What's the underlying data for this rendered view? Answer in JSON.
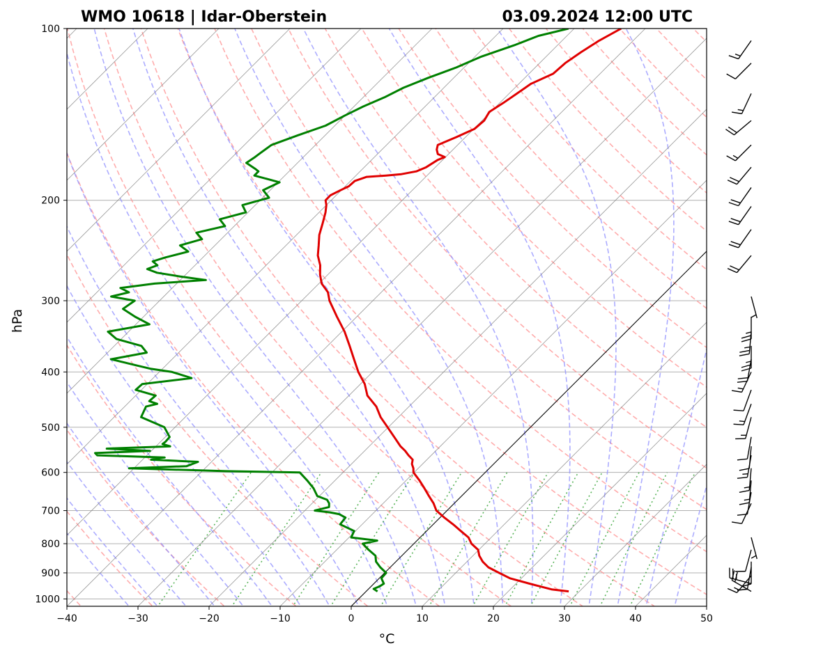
{
  "chart_data": {
    "type": "line",
    "chart_kind": "Skew-T log-P diagram",
    "title_left": "WMO 10618 | Idar-Oberstein",
    "title_right": "03.09.2024 12:00 UTC",
    "xlabel": "°C",
    "ylabel": "hPa",
    "xlim": [
      -40,
      50
    ],
    "ylim": [
      1030,
      100
    ],
    "y_scale": "log",
    "skew": "isotherms skewed 45°",
    "grid": true,
    "x_ticks": [
      -40,
      -30,
      -20,
      -10,
      0,
      10,
      20,
      30,
      40,
      50
    ],
    "x_tick_labels": [
      "−40",
      "−30",
      "−20",
      "−10",
      "0",
      "10",
      "20",
      "30",
      "40",
      "50"
    ],
    "y_ticks": [
      100,
      200,
      300,
      400,
      500,
      600,
      700,
      800,
      900,
      1000
    ],
    "y_tick_labels": [
      "100",
      "200",
      "300",
      "400",
      "500",
      "600",
      "700",
      "800",
      "900",
      "1000"
    ],
    "reference_isotherm_c": 0,
    "background_lines": {
      "isotherms": "grey solid, every 10 °C",
      "dry_adiabats": "red dashed",
      "moist_adiabats": "blue dashed",
      "mixing_ratio_lines": "green dotted, 1000–600 hPa"
    },
    "colors": {
      "temperature": "#e00000",
      "dewpoint": "#008000",
      "isotherm": "#808080",
      "dry_adiabat": "#ff9090",
      "moist_adiabat": "#9090ff",
      "mixing_ratio": "#30a030"
    },
    "series": [
      {
        "key": "temperature",
        "p": [
          970,
          962,
          940,
          920,
          900,
          880,
          860,
          840,
          820,
          800,
          780,
          760,
          740,
          720,
          700,
          680,
          660,
          640,
          620,
          600,
          590,
          580,
          570,
          560,
          550,
          540,
          520,
          500,
          480,
          460,
          440,
          420,
          400,
          380,
          360,
          340,
          320,
          300,
          290,
          280,
          270,
          260,
          250,
          240,
          230,
          220,
          210,
          204,
          200,
          196,
          192,
          189,
          185,
          182,
          181,
          180,
          178,
          175,
          170,
          168,
          166,
          163,
          160,
          155,
          150,
          145,
          140,
          135,
          130,
          125,
          120,
          115,
          110,
          105,
          100
        ],
        "t": [
          28.5,
          25.8,
          21.9,
          18.4,
          16.1,
          13.8,
          12.2,
          10.9,
          9.9,
          8.1,
          6.8,
          4.8,
          2.8,
          0.6,
          -1.5,
          -2.9,
          -4.6,
          -6.3,
          -8.1,
          -10.1,
          -10.7,
          -11.5,
          -12.0,
          -13.2,
          -14.3,
          -15.6,
          -17.8,
          -20.1,
          -22.5,
          -24.6,
          -27.4,
          -29.4,
          -32.0,
          -34.4,
          -36.9,
          -39.6,
          -42.8,
          -46.1,
          -47.5,
          -49.6,
          -51.1,
          -52.4,
          -54.1,
          -55.4,
          -56.8,
          -57.9,
          -59.1,
          -60.0,
          -60.8,
          -60.8,
          -60.1,
          -59.5,
          -59.4,
          -58.3,
          -55.8,
          -53.8,
          -52.1,
          -51.3,
          -50.7,
          -50.1,
          -51.5,
          -52.3,
          -52.8,
          -51.3,
          -49.9,
          -49.7,
          -50.2,
          -49.5,
          -48.9,
          -48.3,
          -46.6,
          -46.4,
          -45.7,
          -44.8,
          -43.4
        ]
      },
      {
        "key": "dewpoint",
        "p": [
          970,
          960,
          950,
          940,
          920,
          900,
          880,
          860,
          840,
          820,
          800,
          790,
          780,
          760,
          740,
          720,
          710,
          705,
          700,
          690,
          680,
          670,
          660,
          640,
          620,
          600,
          597,
          590,
          585,
          575,
          570,
          565,
          560,
          555,
          550,
          545,
          540,
          535,
          530,
          520,
          500,
          480,
          460,
          455,
          450,
          440,
          430,
          420,
          410,
          400,
          395,
          390,
          380,
          370,
          360,
          350,
          340,
          330,
          320,
          310,
          300,
          295,
          290,
          285,
          280,
          276,
          272,
          268,
          264,
          260,
          256,
          252,
          246,
          240,
          234,
          228,
          222,
          216,
          210,
          204,
          198,
          192,
          186,
          181,
          178,
          176,
          172,
          168,
          165,
          160,
          154,
          148,
          142,
          137,
          132,
          127,
          122,
          117,
          112,
          107,
          103,
          100
        ],
        "td": [
          1.6,
          0.7,
          1.2,
          1.4,
          0.3,
          0.2,
          -1.4,
          -2.8,
          -3.7,
          -5.5,
          -7.2,
          -5.6,
          -9.7,
          -10.2,
          -13.1,
          -13.3,
          -14.7,
          -16.2,
          -18.6,
          -17.1,
          -17.6,
          -18.4,
          -20.3,
          -21.9,
          -23.9,
          -26.1,
          -36.7,
          -50.7,
          -42.9,
          -41.9,
          -48.8,
          -47.2,
          -57.0,
          -57.6,
          -50.2,
          -56.6,
          -48.0,
          -49.4,
          -49.3,
          -49.4,
          -51.5,
          -56.2,
          -57.0,
          -55.8,
          -57.3,
          -57.2,
          -60.8,
          -60.7,
          -54.6,
          -58.2,
          -61.6,
          -63.9,
          -68.6,
          -64.5,
          -66.2,
          -70.7,
          -72.9,
          -68.1,
          -71.2,
          -74.0,
          -73.5,
          -77.4,
          -75.5,
          -77.3,
          -73.1,
          -66.4,
          -70.6,
          -74.3,
          -76.2,
          -75.3,
          -76.5,
          -75.3,
          -72.9,
          -74.9,
          -72.7,
          -74.4,
          -71.3,
          -73.0,
          -70.3,
          -71.8,
          -69.1,
          -71.0,
          -69.8,
          -74.3,
          -74.3,
          -75.2,
          -77.2,
          -76.8,
          -76.6,
          -76.2,
          -73.9,
          -71.3,
          -70.0,
          -68.7,
          -67.0,
          -65.7,
          -63.6,
          -61.1,
          -59.1,
          -56.1,
          -54.0,
          -50.8
        ]
      }
    ],
    "wind_barbs": {
      "position": "right margin",
      "unit": "kt",
      "p": [
        970,
        940,
        910,
        880,
        860,
        820,
        780,
        680,
        650,
        620,
        590,
        560,
        540,
        520,
        480,
        455,
        430,
        400,
        380,
        360,
        340,
        320,
        295,
        250,
        225,
        205,
        190,
        175,
        160,
        145,
        130,
        115,
        105
      ],
      "speed": [
        20,
        25,
        15,
        10,
        10,
        10,
        5,
        10,
        10,
        15,
        15,
        15,
        10,
        10,
        15,
        15,
        10,
        15,
        20,
        25,
        25,
        25,
        5,
        20,
        20,
        20,
        20,
        20,
        15,
        20,
        15,
        10,
        15
      ],
      "direction": [
        300,
        285,
        220,
        190,
        180,
        195,
        165,
        205,
        190,
        185,
        185,
        190,
        185,
        190,
        195,
        200,
        200,
        205,
        190,
        180,
        185,
        180,
        165,
        220,
        215,
        215,
        215,
        220,
        225,
        230,
        205,
        225,
        215
      ]
    }
  }
}
